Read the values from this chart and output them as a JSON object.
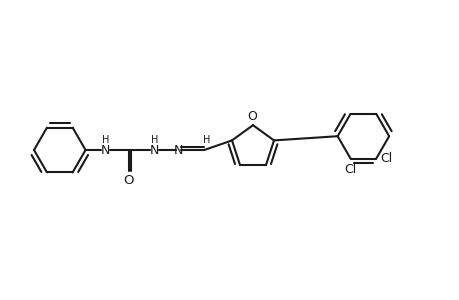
{
  "bg_color": "#ffffff",
  "line_color": "#1a1a1a",
  "line_width": 1.5,
  "fig_width": 4.6,
  "fig_height": 3.0,
  "dpi": 100,
  "xlim": [
    -2,
    48
  ],
  "ylim": [
    -2,
    22
  ]
}
